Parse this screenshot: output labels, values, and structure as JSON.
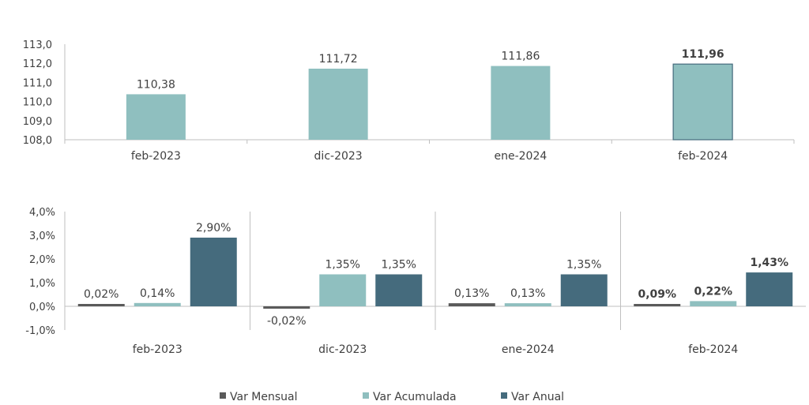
{
  "chart_data": [
    {
      "type": "bar",
      "categories": [
        "feb-2023",
        "dic-2023",
        "ene-2024",
        "feb-2024"
      ],
      "values": [
        110.38,
        111.72,
        111.86,
        111.96
      ],
      "value_labels": [
        "110,38",
        "111,72",
        "111,86",
        "111,96"
      ],
      "highlight_index": 3,
      "ylim": [
        108,
        113
      ],
      "yticks": [
        "113,0",
        "112,0",
        "111,0",
        "110,0",
        "109,0",
        "108,0"
      ],
      "grid": false,
      "color": "#8fbfbf"
    },
    {
      "type": "bar",
      "categories": [
        "feb-2023",
        "dic-2023",
        "ene-2024",
        "feb-2024"
      ],
      "series": [
        {
          "name": "Var Mensual",
          "values": [
            0.02,
            -0.02,
            0.13,
            0.09
          ],
          "labels": [
            "0,02%",
            "-0,02%",
            "0,13%",
            "0,09%"
          ],
          "color": "#5a5a5a"
        },
        {
          "name": "Var Acumulada",
          "values": [
            0.14,
            1.35,
            0.13,
            0.22
          ],
          "labels": [
            "0,14%",
            "1,35%",
            "0,13%",
            "0,22%"
          ],
          "color": "#8fbfbf"
        },
        {
          "name": "Var Anual",
          "values": [
            2.9,
            1.35,
            1.35,
            1.43
          ],
          "labels": [
            "2,90%",
            "1,35%",
            "1,35%",
            "1,43%"
          ],
          "color": "#456b7d"
        }
      ],
      "highlight_index": 3,
      "ylim": [
        -1,
        4
      ],
      "yticks": [
        "4,0%",
        "3,0%",
        "2,0%",
        "1,0%",
        "0,0%",
        "-1,0%"
      ],
      "grid": false,
      "legend": "bottom"
    }
  ]
}
